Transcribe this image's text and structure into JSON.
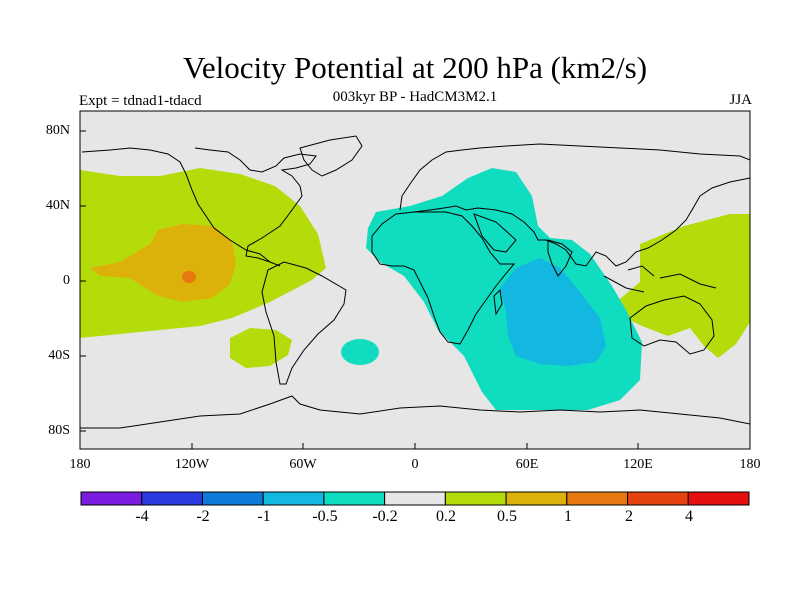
{
  "title": "Velocity Potential at 200 hPa (km2/s)",
  "subtitle": "003kyr BP - HadCM3M2.1",
  "left_label": "Expt = tdnad1-tdacd",
  "right_label": "JJA",
  "axes": {
    "lat_ticks": [
      "80N",
      "40N",
      "0",
      "40S",
      "80S"
    ],
    "lon_ticks": [
      "180",
      "120W",
      "60W",
      "0",
      "60E",
      "120E",
      "180"
    ]
  },
  "colorbar": {
    "colors": [
      "#7a1de0",
      "#2a3ae0",
      "#0f7ad8",
      "#12b8e0",
      "#10dcc0",
      "#e6e6e6",
      "#b4dc0a",
      "#dcb20a",
      "#e6780f",
      "#e6420f",
      "#e60f0f"
    ],
    "labels": [
      "-4",
      "-2",
      "-1",
      "-0.5",
      "-0.2",
      "0.2",
      "0.5",
      "1",
      "2",
      "4"
    ]
  },
  "colors": {
    "background_field": "#e6e6e6",
    "coastline": "#000000"
  }
}
